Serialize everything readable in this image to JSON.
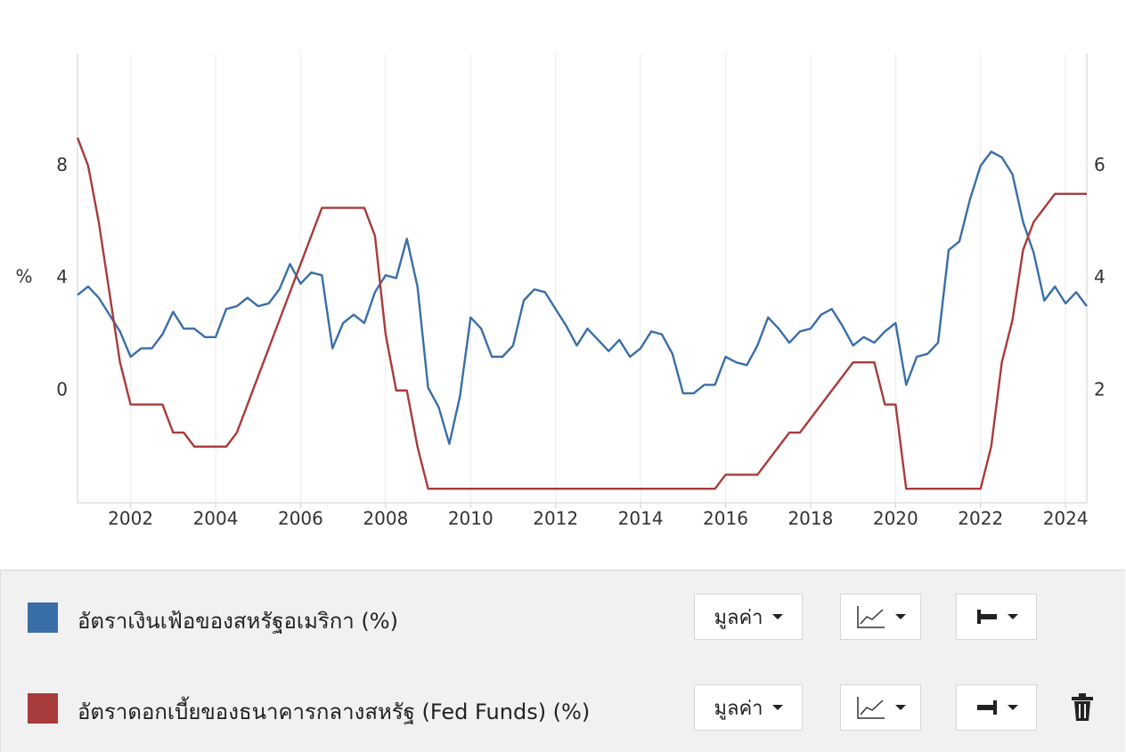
{
  "chart_data": {
    "type": "line",
    "ylabel": "%",
    "x": [
      2000.75,
      2001.0,
      2001.25,
      2001.5,
      2001.75,
      2002.0,
      2002.25,
      2002.5,
      2002.75,
      2003.0,
      2003.25,
      2003.5,
      2003.75,
      2004.0,
      2004.25,
      2004.5,
      2004.75,
      2005.0,
      2005.25,
      2005.5,
      2005.75,
      2006.0,
      2006.25,
      2006.5,
      2006.75,
      2007.0,
      2007.25,
      2007.5,
      2007.75,
      2008.0,
      2008.25,
      2008.5,
      2008.75,
      2009.0,
      2009.25,
      2009.5,
      2009.75,
      2010.0,
      2010.25,
      2010.5,
      2010.75,
      2011.0,
      2011.25,
      2011.5,
      2011.75,
      2012.0,
      2012.25,
      2012.5,
      2012.75,
      2013.0,
      2013.25,
      2013.5,
      2013.75,
      2014.0,
      2014.25,
      2014.5,
      2014.75,
      2015.0,
      2015.25,
      2015.5,
      2015.75,
      2016.0,
      2016.25,
      2016.5,
      2016.75,
      2017.0,
      2017.25,
      2017.5,
      2017.75,
      2018.0,
      2018.25,
      2018.5,
      2018.75,
      2019.0,
      2019.25,
      2019.5,
      2019.75,
      2020.0,
      2020.25,
      2020.5,
      2020.75,
      2021.0,
      2021.25,
      2021.5,
      2021.75,
      2022.0,
      2022.25,
      2022.5,
      2022.75,
      2023.0,
      2023.25,
      2023.5,
      2023.75,
      2024.0,
      2024.25,
      2024.5
    ],
    "series": [
      {
        "name": "อัตราเงินเฟ้อของสหรัฐอเมริกา (%)",
        "color": "#3a6ea8",
        "axis": "y",
        "values": [
          3.4,
          3.7,
          3.3,
          2.7,
          2.1,
          1.2,
          1.5,
          1.5,
          2.0,
          2.8,
          2.2,
          2.2,
          1.9,
          1.9,
          2.9,
          3.0,
          3.3,
          3.0,
          3.1,
          3.6,
          4.5,
          3.8,
          4.2,
          4.1,
          1.5,
          2.4,
          2.7,
          2.4,
          3.5,
          4.1,
          4.0,
          5.4,
          3.7,
          0.1,
          -0.6,
          -1.9,
          -0.2,
          2.6,
          2.2,
          1.2,
          1.2,
          1.6,
          3.2,
          3.6,
          3.5,
          2.9,
          2.3,
          1.6,
          2.2,
          1.8,
          1.4,
          1.8,
          1.2,
          1.5,
          2.1,
          2.0,
          1.3,
          -0.1,
          -0.1,
          0.2,
          0.2,
          1.2,
          1.0,
          0.9,
          1.6,
          2.6,
          2.2,
          1.7,
          2.1,
          2.2,
          2.7,
          2.9,
          2.3,
          1.6,
          1.9,
          1.7,
          2.1,
          2.4,
          0.2,
          1.2,
          1.3,
          1.7,
          5.0,
          5.3,
          6.8,
          8.0,
          8.5,
          8.3,
          7.7,
          6.0,
          4.9,
          3.2,
          3.7,
          3.1,
          3.5,
          3.0
        ]
      },
      {
        "name": "อัตราดอกเบี้ยของธนาคารกลางสหรัฐ (Fed Funds) (%)",
        "color": "#a83b3b",
        "axis": "y2",
        "values": [
          6.5,
          6.0,
          5.0,
          3.75,
          2.5,
          1.75,
          1.75,
          1.75,
          1.75,
          1.25,
          1.25,
          1.0,
          1.0,
          1.0,
          1.0,
          1.25,
          1.75,
          2.25,
          2.75,
          3.25,
          3.75,
          4.25,
          4.75,
          5.25,
          5.25,
          5.25,
          5.25,
          5.25,
          4.75,
          3.0,
          2.0,
          2.0,
          1.0,
          0.25,
          0.25,
          0.25,
          0.25,
          0.25,
          0.25,
          0.25,
          0.25,
          0.25,
          0.25,
          0.25,
          0.25,
          0.25,
          0.25,
          0.25,
          0.25,
          0.25,
          0.25,
          0.25,
          0.25,
          0.25,
          0.25,
          0.25,
          0.25,
          0.25,
          0.25,
          0.25,
          0.25,
          0.5,
          0.5,
          0.5,
          0.5,
          0.75,
          1.0,
          1.25,
          1.25,
          1.5,
          1.75,
          2.0,
          2.25,
          2.5,
          2.5,
          2.5,
          1.75,
          1.75,
          0.25,
          0.25,
          0.25,
          0.25,
          0.25,
          0.25,
          0.25,
          0.25,
          1.0,
          2.5,
          3.25,
          4.5,
          5.0,
          5.25,
          5.5,
          5.5,
          5.5,
          5.5
        ]
      }
    ],
    "xlim": [
      2000.75,
      2024.5
    ],
    "xticks": [
      2002,
      2004,
      2006,
      2008,
      2010,
      2012,
      2014,
      2016,
      2018,
      2020,
      2022,
      2024
    ],
    "ylim": [
      -4,
      12
    ],
    "yticks": [
      0,
      4,
      8
    ],
    "y2lim": [
      0,
      8
    ],
    "y2ticks": [
      2,
      4,
      6
    ],
    "grid": "x"
  },
  "controls": [
    {
      "dropdown": "มูลค่า"
    },
    {
      "dropdown": "มูลค่า"
    }
  ]
}
